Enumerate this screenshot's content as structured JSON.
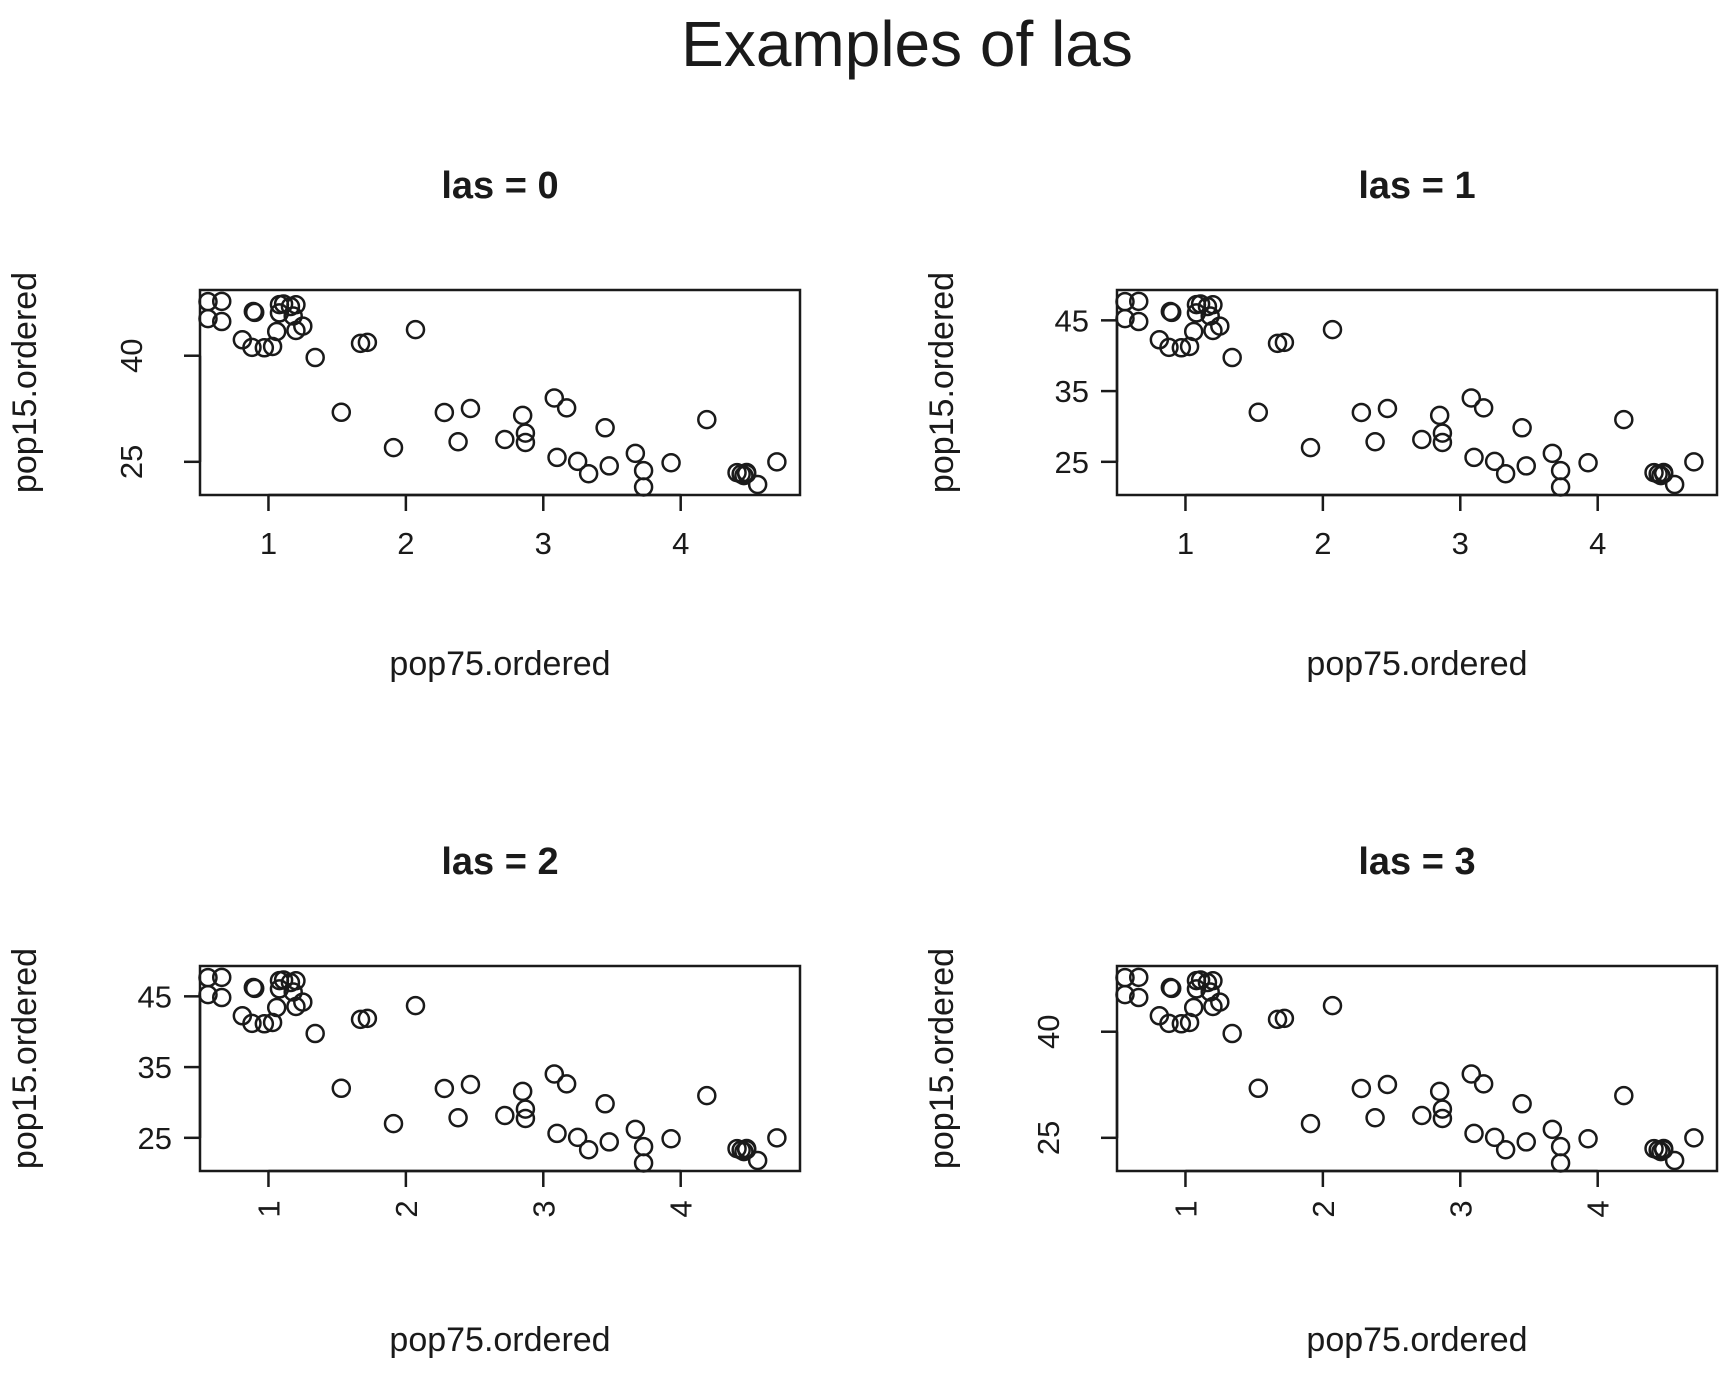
{
  "figure_title": "Examples of las",
  "chart_data": [
    {
      "type": "scatter",
      "title": "las = 0",
      "las": 0,
      "xlabel": "pop75.ordered",
      "ylabel": "pop15.ordered",
      "xticks": [
        1,
        2,
        3,
        4
      ],
      "yticks": [
        25,
        40
      ],
      "xlim": [
        0.56,
        4.81
      ],
      "ylim": [
        21.44,
        48.16
      ],
      "grid": false,
      "legend": "none",
      "points": [
        [
          0.56,
          47.64
        ],
        [
          0.56,
          45.25
        ],
        [
          0.66,
          47.69
        ],
        [
          0.66,
          44.83
        ],
        [
          0.81,
          42.25
        ],
        [
          0.88,
          41.18
        ],
        [
          0.89,
          46.26
        ],
        [
          0.9,
          46.12
        ],
        [
          0.97,
          41.12
        ],
        [
          1.03,
          41.31
        ],
        [
          1.06,
          43.42
        ],
        [
          1.08,
          46.05
        ],
        [
          1.08,
          47.22
        ],
        [
          1.11,
          47.32
        ],
        [
          1.16,
          46.95
        ],
        [
          1.18,
          45.61
        ],
        [
          1.2,
          43.56
        ],
        [
          1.2,
          47.2
        ],
        [
          1.25,
          44.19
        ],
        [
          1.34,
          39.74
        ],
        [
          1.53,
          32.0
        ],
        [
          1.67,
          41.74
        ],
        [
          1.72,
          41.89
        ],
        [
          1.91,
          27.01
        ],
        [
          2.07,
          43.69
        ],
        [
          2.28,
          31.98
        ],
        [
          2.38,
          27.84
        ],
        [
          2.47,
          32.54
        ],
        [
          2.72,
          28.15
        ],
        [
          2.85,
          31.57
        ],
        [
          2.87,
          29.06
        ],
        [
          2.87,
          27.74
        ],
        [
          3.08,
          34.03
        ],
        [
          3.1,
          25.62
        ],
        [
          3.17,
          32.63
        ],
        [
          3.25,
          25.06
        ],
        [
          3.33,
          23.32
        ],
        [
          3.45,
          29.81
        ],
        [
          3.48,
          24.42
        ],
        [
          3.67,
          26.2
        ],
        [
          3.73,
          23.76
        ],
        [
          3.73,
          21.44
        ],
        [
          3.93,
          24.87
        ],
        [
          4.19,
          30.96
        ],
        [
          4.41,
          23.48
        ],
        [
          4.44,
          23.27
        ],
        [
          4.46,
          23.05
        ],
        [
          4.48,
          23.32
        ],
        [
          4.48,
          23.49
        ],
        [
          4.56,
          21.8
        ],
        [
          4.7,
          25.0
        ]
      ]
    },
    {
      "type": "scatter",
      "title": "las = 1",
      "las": 1,
      "xlabel": "pop75.ordered",
      "ylabel": "pop15.ordered",
      "xticks": [
        1,
        2,
        3,
        4
      ],
      "yticks": [
        25,
        35,
        45
      ],
      "xlim": [
        0.56,
        4.81
      ],
      "ylim": [
        21.44,
        48.16
      ],
      "grid": false,
      "legend": "none",
      "points": [
        [
          0.56,
          47.64
        ],
        [
          0.56,
          45.25
        ],
        [
          0.66,
          47.69
        ],
        [
          0.66,
          44.83
        ],
        [
          0.81,
          42.25
        ],
        [
          0.88,
          41.18
        ],
        [
          0.89,
          46.26
        ],
        [
          0.9,
          46.12
        ],
        [
          0.97,
          41.12
        ],
        [
          1.03,
          41.31
        ],
        [
          1.06,
          43.42
        ],
        [
          1.08,
          46.05
        ],
        [
          1.08,
          47.22
        ],
        [
          1.11,
          47.32
        ],
        [
          1.16,
          46.95
        ],
        [
          1.18,
          45.61
        ],
        [
          1.2,
          43.56
        ],
        [
          1.2,
          47.2
        ],
        [
          1.25,
          44.19
        ],
        [
          1.34,
          39.74
        ],
        [
          1.53,
          32.0
        ],
        [
          1.67,
          41.74
        ],
        [
          1.72,
          41.89
        ],
        [
          1.91,
          27.01
        ],
        [
          2.07,
          43.69
        ],
        [
          2.28,
          31.98
        ],
        [
          2.38,
          27.84
        ],
        [
          2.47,
          32.54
        ],
        [
          2.72,
          28.15
        ],
        [
          2.85,
          31.57
        ],
        [
          2.87,
          29.06
        ],
        [
          2.87,
          27.74
        ],
        [
          3.08,
          34.03
        ],
        [
          3.1,
          25.62
        ],
        [
          3.17,
          32.63
        ],
        [
          3.25,
          25.06
        ],
        [
          3.33,
          23.32
        ],
        [
          3.45,
          29.81
        ],
        [
          3.48,
          24.42
        ],
        [
          3.67,
          26.2
        ],
        [
          3.73,
          23.76
        ],
        [
          3.73,
          21.44
        ],
        [
          3.93,
          24.87
        ],
        [
          4.19,
          30.96
        ],
        [
          4.41,
          23.48
        ],
        [
          4.44,
          23.27
        ],
        [
          4.46,
          23.05
        ],
        [
          4.48,
          23.32
        ],
        [
          4.48,
          23.49
        ],
        [
          4.56,
          21.8
        ],
        [
          4.7,
          25.0
        ]
      ]
    },
    {
      "type": "scatter",
      "title": "las = 2",
      "las": 2,
      "xlabel": "pop75.ordered",
      "ylabel": "pop15.ordered",
      "xticks": [
        1,
        2,
        3,
        4
      ],
      "yticks": [
        25,
        35,
        45
      ],
      "xlim": [
        0.56,
        4.81
      ],
      "ylim": [
        21.44,
        48.16
      ],
      "grid": false,
      "legend": "none",
      "points": [
        [
          0.56,
          47.64
        ],
        [
          0.56,
          45.25
        ],
        [
          0.66,
          47.69
        ],
        [
          0.66,
          44.83
        ],
        [
          0.81,
          42.25
        ],
        [
          0.88,
          41.18
        ],
        [
          0.89,
          46.26
        ],
        [
          0.9,
          46.12
        ],
        [
          0.97,
          41.12
        ],
        [
          1.03,
          41.31
        ],
        [
          1.06,
          43.42
        ],
        [
          1.08,
          46.05
        ],
        [
          1.08,
          47.22
        ],
        [
          1.11,
          47.32
        ],
        [
          1.16,
          46.95
        ],
        [
          1.18,
          45.61
        ],
        [
          1.2,
          43.56
        ],
        [
          1.2,
          47.2
        ],
        [
          1.25,
          44.19
        ],
        [
          1.34,
          39.74
        ],
        [
          1.53,
          32.0
        ],
        [
          1.67,
          41.74
        ],
        [
          1.72,
          41.89
        ],
        [
          1.91,
          27.01
        ],
        [
          2.07,
          43.69
        ],
        [
          2.28,
          31.98
        ],
        [
          2.38,
          27.84
        ],
        [
          2.47,
          32.54
        ],
        [
          2.72,
          28.15
        ],
        [
          2.85,
          31.57
        ],
        [
          2.87,
          29.06
        ],
        [
          2.87,
          27.74
        ],
        [
          3.08,
          34.03
        ],
        [
          3.1,
          25.62
        ],
        [
          3.17,
          32.63
        ],
        [
          3.25,
          25.06
        ],
        [
          3.33,
          23.32
        ],
        [
          3.45,
          29.81
        ],
        [
          3.48,
          24.42
        ],
        [
          3.67,
          26.2
        ],
        [
          3.73,
          23.76
        ],
        [
          3.73,
          21.44
        ],
        [
          3.93,
          24.87
        ],
        [
          4.19,
          30.96
        ],
        [
          4.41,
          23.48
        ],
        [
          4.44,
          23.27
        ],
        [
          4.46,
          23.05
        ],
        [
          4.48,
          23.32
        ],
        [
          4.48,
          23.49
        ],
        [
          4.56,
          21.8
        ],
        [
          4.7,
          25.0
        ]
      ]
    },
    {
      "type": "scatter",
      "title": "las = 3",
      "las": 3,
      "xlabel": "pop75.ordered",
      "ylabel": "pop15.ordered",
      "xticks": [
        1,
        2,
        3,
        4
      ],
      "yticks": [
        25,
        40
      ],
      "xlim": [
        0.56,
        4.81
      ],
      "ylim": [
        21.44,
        48.16
      ],
      "grid": false,
      "legend": "none",
      "points": [
        [
          0.56,
          47.64
        ],
        [
          0.56,
          45.25
        ],
        [
          0.66,
          47.69
        ],
        [
          0.66,
          44.83
        ],
        [
          0.81,
          42.25
        ],
        [
          0.88,
          41.18
        ],
        [
          0.89,
          46.26
        ],
        [
          0.9,
          46.12
        ],
        [
          0.97,
          41.12
        ],
        [
          1.03,
          41.31
        ],
        [
          1.06,
          43.42
        ],
        [
          1.08,
          46.05
        ],
        [
          1.08,
          47.22
        ],
        [
          1.11,
          47.32
        ],
        [
          1.16,
          46.95
        ],
        [
          1.18,
          45.61
        ],
        [
          1.2,
          43.56
        ],
        [
          1.2,
          47.2
        ],
        [
          1.25,
          44.19
        ],
        [
          1.34,
          39.74
        ],
        [
          1.53,
          32.0
        ],
        [
          1.67,
          41.74
        ],
        [
          1.72,
          41.89
        ],
        [
          1.91,
          27.01
        ],
        [
          2.07,
          43.69
        ],
        [
          2.28,
          31.98
        ],
        [
          2.38,
          27.84
        ],
        [
          2.47,
          32.54
        ],
        [
          2.72,
          28.15
        ],
        [
          2.85,
          31.57
        ],
        [
          2.87,
          29.06
        ],
        [
          2.87,
          27.74
        ],
        [
          3.08,
          34.03
        ],
        [
          3.1,
          25.62
        ],
        [
          3.17,
          32.63
        ],
        [
          3.25,
          25.06
        ],
        [
          3.33,
          23.32
        ],
        [
          3.45,
          29.81
        ],
        [
          3.48,
          24.42
        ],
        [
          3.67,
          26.2
        ],
        [
          3.73,
          23.76
        ],
        [
          3.73,
          21.44
        ],
        [
          3.93,
          24.87
        ],
        [
          4.19,
          30.96
        ],
        [
          4.41,
          23.48
        ],
        [
          4.44,
          23.27
        ],
        [
          4.46,
          23.05
        ],
        [
          4.48,
          23.32
        ],
        [
          4.48,
          23.49
        ],
        [
          4.56,
          21.8
        ],
        [
          4.7,
          25.0
        ]
      ]
    }
  ]
}
